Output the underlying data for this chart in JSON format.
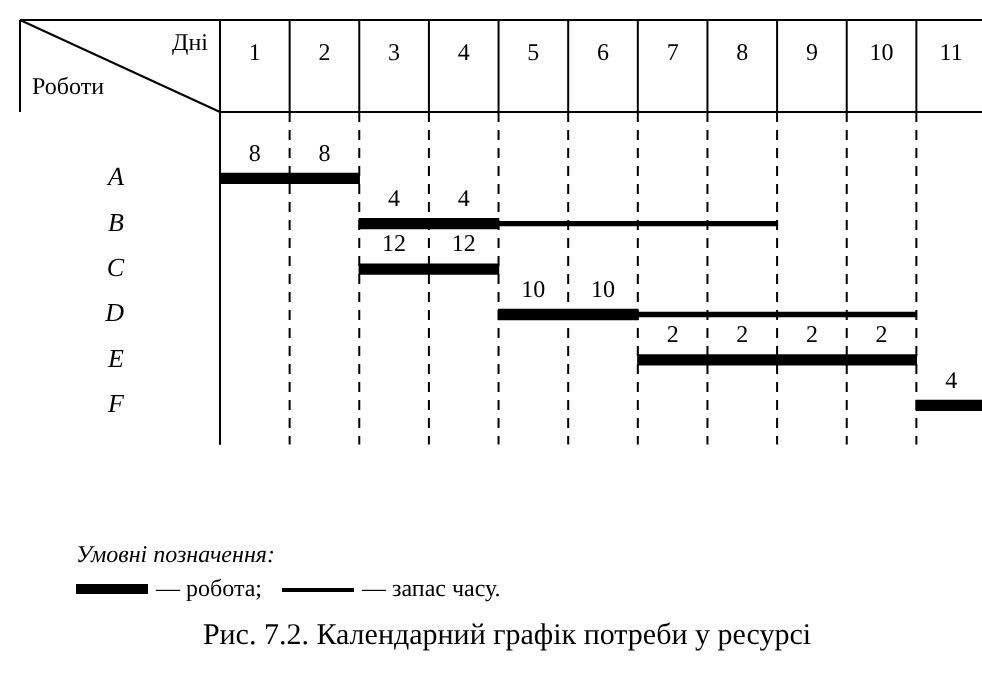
{
  "chart_data": {
    "type": "bar",
    "orientation": "horizontal",
    "title": "Рис. 7.2. Календарний графік потреби у ресурсі",
    "xlabel": "Дні",
    "ylabel": "Роботи",
    "legend_title": "Умовні позначення:",
    "legend": "bottom",
    "grid": "x",
    "categories": [
      "A",
      "B",
      "C",
      "D",
      "E",
      "F"
    ],
    "xlim": [
      0,
      11
    ],
    "xticks": [
      {
        "value": 0.5,
        "label": "1"
      },
      {
        "value": 1.5,
        "label": "2"
      },
      {
        "value": 2.5,
        "label": "3"
      },
      {
        "value": 3.5,
        "label": "4"
      },
      {
        "value": 4.5,
        "label": "5"
      },
      {
        "value": 5.5,
        "label": "6"
      },
      {
        "value": 6.5,
        "label": "7"
      },
      {
        "value": 7.5,
        "label": "8"
      },
      {
        "value": 8.5,
        "label": "9"
      },
      {
        "value": 9.5,
        "label": "10"
      },
      {
        "value": 10.5,
        "label": "11"
      }
    ],
    "series": [
      {
        "name": "— робота;",
        "color": "#000000",
        "base": [
          0,
          2,
          2,
          4,
          6,
          10
        ],
        "values": [
          2,
          2,
          2,
          2,
          4,
          1
        ]
      },
      {
        "name": "— запас часу.",
        "color": "#000000",
        "base": [
          null,
          4,
          null,
          6,
          null,
          null
        ],
        "values": [
          null,
          4,
          null,
          4,
          null,
          null
        ]
      }
    ],
    "annotations": [
      {
        "text": "8",
        "x": 0.5,
        "y": "A"
      },
      {
        "text": "8",
        "x": 1.5,
        "y": "A"
      },
      {
        "text": "4",
        "x": 2.5,
        "y": "B"
      },
      {
        "text": "4",
        "x": 3.5,
        "y": "B"
      },
      {
        "text": "12",
        "x": 2.5,
        "y": "C"
      },
      {
        "text": "12",
        "x": 3.5,
        "y": "C"
      },
      {
        "text": "10",
        "x": 4.5,
        "y": "D"
      },
      {
        "text": "10",
        "x": 5.5,
        "y": "D"
      },
      {
        "text": "2",
        "x": 6.5,
        "y": "E"
      },
      {
        "text": "2",
        "x": 7.5,
        "y": "E"
      },
      {
        "text": "2",
        "x": 8.5,
        "y": "E"
      },
      {
        "text": "2",
        "x": 9.5,
        "y": "E"
      },
      {
        "text": "4",
        "x": 10.5,
        "y": "F"
      }
    ]
  }
}
